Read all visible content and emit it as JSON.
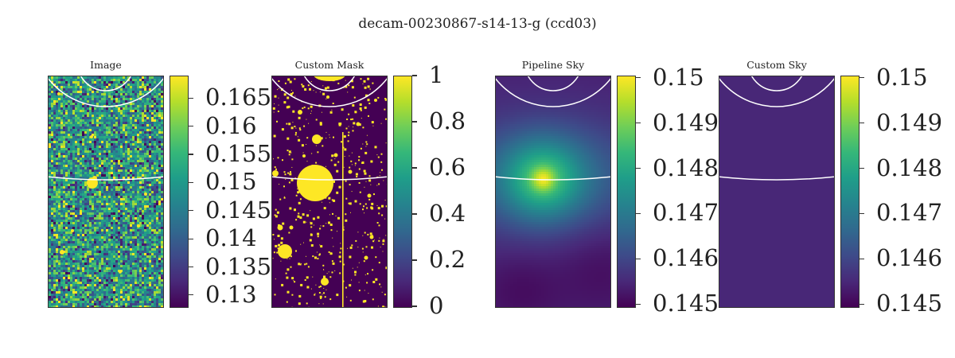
{
  "suptitle": "decam-00230867-s14-13-g (ccd03)",
  "chart_data": [
    {
      "type": "heatmap",
      "title": "Image",
      "colormap": "viridis",
      "colorbar": {
        "range": [
          0.128,
          0.169
        ],
        "ticks": [
          0.13,
          0.135,
          0.14,
          0.145,
          0.15,
          0.155,
          0.16,
          0.165
        ],
        "tick_labels": [
          "0.13",
          "0.135",
          "0.14",
          "0.145",
          "0.15",
          "0.155",
          "0.16",
          "0.165"
        ]
      },
      "background_level": 0.147,
      "overlay": "concentric white circles"
    },
    {
      "type": "heatmap",
      "title": "Custom Mask",
      "colormap": "viridis",
      "colorbar": {
        "range": [
          0,
          1
        ],
        "ticks": [
          0,
          0.2,
          0.4,
          0.6,
          0.8,
          1
        ],
        "tick_labels": [
          "0",
          "0.2",
          "0.4",
          "0.6",
          "0.8",
          "1"
        ]
      },
      "values_present": [
        0,
        1
      ],
      "overlay": "concentric white circles"
    },
    {
      "type": "heatmap",
      "title": "Pipeline Sky",
      "colormap": "viridis",
      "colorbar": {
        "range": [
          0.14495,
          0.15005
        ],
        "ticks": [
          0.145,
          0.146,
          0.147,
          0.148,
          0.149,
          0.15
        ],
        "tick_labels": [
          "0.145",
          "0.146",
          "0.147",
          "0.148",
          "0.149",
          "0.15"
        ]
      },
      "peak_value": 0.15,
      "min_value": 0.145,
      "overlay": "concentric white circles"
    },
    {
      "type": "heatmap",
      "title": "Custom Sky",
      "colormap": "viridis",
      "colorbar": {
        "range": [
          0.14495,
          0.15005
        ],
        "ticks": [
          0.145,
          0.146,
          0.147,
          0.148,
          0.149,
          0.15
        ],
        "tick_labels": [
          "0.145",
          "0.146",
          "0.147",
          "0.148",
          "0.149",
          "0.15"
        ]
      },
      "uniform_value": 0.1455,
      "overlay": "concentric white circles"
    }
  ]
}
